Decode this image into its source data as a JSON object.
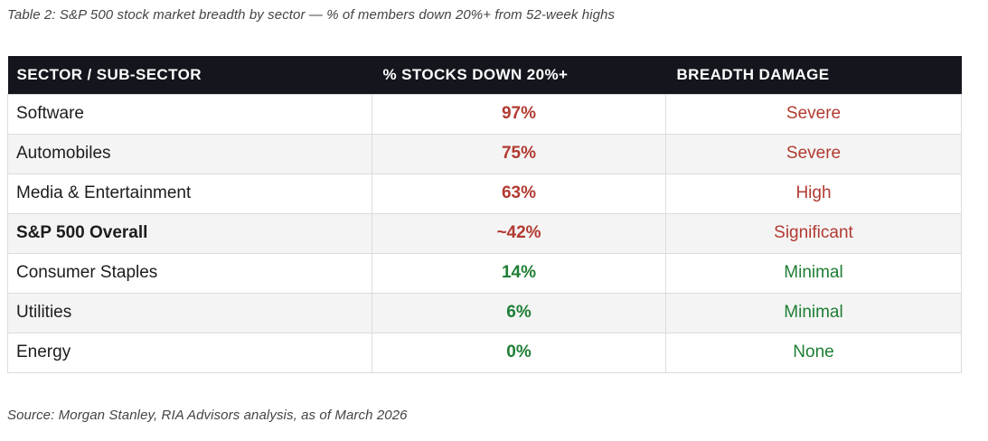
{
  "title": "Table 2: S&P 500 stock market breadth by sector — % of members down 20%+ from 52-week highs",
  "source": "Source: Morgan Stanley, RIA Advisors analysis, as of March 2026",
  "colors": {
    "header_bg": "#14161d",
    "header_text": "#ffffff",
    "row_alt_bg": "#f4f4f4",
    "border": "#dcdcdc",
    "negative": "#b23a31",
    "positive": "#1e7e34",
    "body_text": "#1c1c1c",
    "muted_text": "#444444"
  },
  "chart_data": {
    "type": "table",
    "columns": [
      "SECTOR / SUB-SECTOR",
      "% STOCKS DOWN 20%+",
      "BREADTH DAMAGE"
    ],
    "rows": [
      {
        "sector": "Software",
        "pct_down": "97%",
        "damage": "Severe",
        "tone": "negative",
        "emphasis": false
      },
      {
        "sector": "Automobiles",
        "pct_down": "75%",
        "damage": "Severe",
        "tone": "negative",
        "emphasis": false
      },
      {
        "sector": "Media & Entertainment",
        "pct_down": "63%",
        "damage": "High",
        "tone": "negative",
        "emphasis": false
      },
      {
        "sector": "S&P 500 Overall",
        "pct_down": "~42%",
        "damage": "Significant",
        "tone": "negative",
        "emphasis": true
      },
      {
        "sector": "Consumer Staples",
        "pct_down": "14%",
        "damage": "Minimal",
        "tone": "positive",
        "emphasis": false
      },
      {
        "sector": "Utilities",
        "pct_down": "6%",
        "damage": "Minimal",
        "tone": "positive",
        "emphasis": false
      },
      {
        "sector": "Energy",
        "pct_down": "0%",
        "damage": "None",
        "tone": "positive",
        "emphasis": false
      }
    ]
  }
}
